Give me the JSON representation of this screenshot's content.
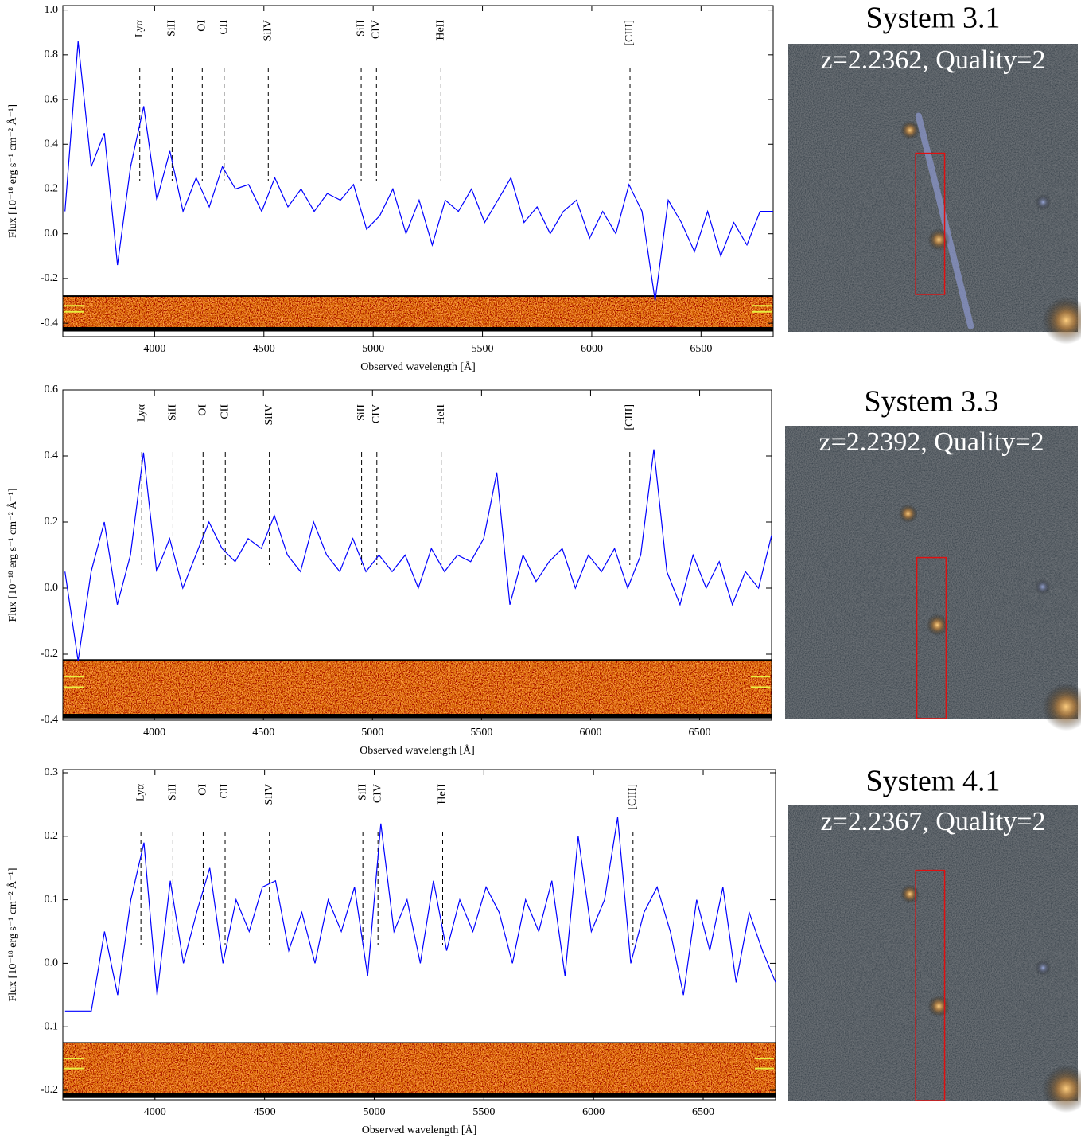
{
  "chart_data": [
    {
      "type": "line",
      "system": "System 3.1",
      "redshift_label": "z=2.2362, Quality=2",
      "x_label": "Observed wavelength [Å]",
      "y_label": "Flux [10⁻¹⁸ erg s⁻¹ cm⁻² Å⁻¹]",
      "xlim": [
        3580,
        6830
      ],
      "xticks": [
        4000,
        4500,
        5000,
        5500,
        6000,
        6500
      ],
      "ylim": [
        -0.46,
        1.02
      ],
      "yticks": [
        -0.4,
        -0.2,
        {
          "value": 0,
          "label": "0.0"
        },
        0.2,
        0.4,
        0.6,
        0.8,
        {
          "value": 1,
          "label": "1.0"
        }
      ],
      "series": [
        {
          "name": "spectrum",
          "color": "#0000ff",
          "x": [
            3590,
            3650,
            3710,
            3770,
            3830,
            3890,
            3950,
            4010,
            4070,
            4130,
            4190,
            4250,
            4310,
            4370,
            4430,
            4490,
            4550,
            4610,
            4670,
            4730,
            4790,
            4850,
            4910,
            4970,
            5030,
            5090,
            5150,
            5210,
            5270,
            5330,
            5390,
            5450,
            5510,
            5570,
            5630,
            5690,
            5750,
            5810,
            5870,
            5930,
            5990,
            6050,
            6110,
            6170,
            6230,
            6290,
            6350,
            6410,
            6470,
            6530,
            6590,
            6650,
            6710,
            6770,
            6830
          ],
          "values": [
            0.1,
            0.86,
            0.3,
            0.45,
            -0.14,
            0.3,
            0.57,
            0.15,
            0.37,
            0.1,
            0.25,
            0.12,
            0.3,
            0.2,
            0.22,
            0.1,
            0.25,
            0.12,
            0.2,
            0.1,
            0.18,
            0.15,
            0.22,
            0.02,
            0.08,
            0.2,
            0.0,
            0.15,
            -0.05,
            0.15,
            0.1,
            0.2,
            0.05,
            0.15,
            0.25,
            0.05,
            0.12,
            0.0,
            0.1,
            0.15,
            -0.02,
            0.1,
            0.0,
            0.22,
            0.1,
            -0.3,
            0.15,
            0.05,
            -0.08,
            0.1,
            -0.1,
            0.05,
            -0.05,
            0.1,
            0.1
          ]
        }
      ],
      "annotations": [
        {
          "label": "Lyα",
          "x": 3932
        },
        {
          "label": "SiII",
          "x": 4080
        },
        {
          "label": "OI",
          "x": 4218
        },
        {
          "label": "CII",
          "x": 4318
        },
        {
          "label": "SiIV",
          "x": 4520
        },
        {
          "label": "SiII",
          "x": 4945
        },
        {
          "label": "CIV",
          "x": 5015
        },
        {
          "label": "HeII",
          "x": 5310
        },
        {
          "label": "[CIII]",
          "x": 6175
        }
      ]
    },
    {
      "type": "line",
      "system": "System 3.3",
      "redshift_label": "z=2.2392, Quality=2",
      "x_label": "Observed wavelength [Å]",
      "y_label": "Flux [10⁻¹⁸ erg s⁻¹ cm⁻² Å⁻¹]",
      "xlim": [
        3580,
        6830
      ],
      "xticks": [
        4000,
        4500,
        5000,
        5500,
        6000,
        6500
      ],
      "ylim": [
        -0.4,
        0.6
      ],
      "yticks": [
        -0.4,
        -0.2,
        {
          "value": 0,
          "label": "0.0"
        },
        0.2,
        0.4,
        0.6
      ],
      "series": [
        {
          "name": "spectrum",
          "color": "#0000ff",
          "x": [
            3590,
            3650,
            3710,
            3770,
            3830,
            3890,
            3950,
            4010,
            4070,
            4130,
            4190,
            4250,
            4310,
            4370,
            4430,
            4490,
            4550,
            4610,
            4670,
            4730,
            4790,
            4850,
            4910,
            4970,
            5030,
            5090,
            5150,
            5210,
            5270,
            5330,
            5390,
            5450,
            5510,
            5570,
            5630,
            5690,
            5750,
            5810,
            5870,
            5930,
            5990,
            6050,
            6110,
            6170,
            6230,
            6290,
            6350,
            6410,
            6470,
            6530,
            6590,
            6650,
            6710,
            6770,
            6830
          ],
          "values": [
            0.05,
            -0.22,
            0.05,
            0.2,
            -0.05,
            0.1,
            0.41,
            0.05,
            0.15,
            0.0,
            0.1,
            0.2,
            0.12,
            0.08,
            0.15,
            0.12,
            0.22,
            0.1,
            0.05,
            0.2,
            0.1,
            0.05,
            0.15,
            0.05,
            0.1,
            0.05,
            0.1,
            0.0,
            0.12,
            0.05,
            0.1,
            0.08,
            0.15,
            0.35,
            -0.05,
            0.1,
            0.02,
            0.08,
            0.12,
            0.0,
            0.1,
            0.05,
            0.12,
            0.0,
            0.1,
            0.42,
            0.05,
            -0.05,
            0.1,
            0.0,
            0.08,
            -0.05,
            0.05,
            0.0,
            0.16
          ]
        }
      ],
      "annotations": [
        {
          "label": "Lyα",
          "x": 3942
        },
        {
          "label": "SiII",
          "x": 4085
        },
        {
          "label": "OI",
          "x": 4223
        },
        {
          "label": "CII",
          "x": 4325
        },
        {
          "label": "SiIV",
          "x": 4527
        },
        {
          "label": "SiII",
          "x": 4950
        },
        {
          "label": "CIV",
          "x": 5020
        },
        {
          "label": "HeII",
          "x": 5315
        },
        {
          "label": "[CIII]",
          "x": 6180
        }
      ]
    },
    {
      "type": "line",
      "system": "System 4.1",
      "redshift_label": "z=2.2367, Quality=2",
      "x_label": "Observed wavelength [Å]",
      "y_label": "Flux [10⁻¹⁸ erg s⁻¹ cm⁻² Å⁻¹]",
      "xlim": [
        3580,
        6830
      ],
      "xticks": [
        4000,
        4500,
        5000,
        5500,
        6000,
        6500
      ],
      "ylim": [
        -0.215,
        0.305
      ],
      "yticks": [
        -0.2,
        -0.1,
        {
          "value": 0,
          "label": "0.0"
        },
        0.1,
        0.2,
        0.3
      ],
      "series": [
        {
          "name": "spectrum",
          "color": "#0000ff",
          "x": [
            3590,
            3650,
            3710,
            3770,
            3830,
            3890,
            3950,
            4010,
            4070,
            4130,
            4190,
            4250,
            4310,
            4370,
            4430,
            4490,
            4550,
            4610,
            4670,
            4730,
            4790,
            4850,
            4910,
            4970,
            5030,
            5090,
            5150,
            5210,
            5270,
            5330,
            5390,
            5450,
            5510,
            5570,
            5630,
            5690,
            5750,
            5810,
            5870,
            5930,
            5990,
            6050,
            6110,
            6170,
            6230,
            6290,
            6350,
            6410,
            6470,
            6530,
            6590,
            6650,
            6710,
            6770,
            6830
          ],
          "values": [
            -0.075,
            -0.075,
            -0.075,
            0.05,
            -0.05,
            0.1,
            0.19,
            -0.05,
            0.13,
            0.0,
            0.08,
            0.15,
            0.0,
            0.1,
            0.05,
            0.12,
            0.13,
            0.02,
            0.08,
            0.0,
            0.1,
            0.05,
            0.12,
            -0.02,
            0.22,
            0.05,
            0.1,
            0.0,
            0.13,
            0.02,
            0.1,
            0.05,
            0.12,
            0.08,
            0.0,
            0.1,
            0.05,
            0.13,
            -0.02,
            0.2,
            0.05,
            0.1,
            0.23,
            0.0,
            0.08,
            0.12,
            0.05,
            -0.05,
            0.1,
            0.02,
            0.12,
            -0.03,
            0.08,
            0.02,
            -0.03
          ]
        }
      ],
      "annotations": [
        {
          "label": "Lyα",
          "x": 3936
        },
        {
          "label": "SiII",
          "x": 4082
        },
        {
          "label": "OI",
          "x": 4220
        },
        {
          "label": "CII",
          "x": 4320
        },
        {
          "label": "SiIV",
          "x": 4522
        },
        {
          "label": "SiII",
          "x": 4948
        },
        {
          "label": "CIV",
          "x": 5017
        },
        {
          "label": "HeII",
          "x": 5312
        },
        {
          "label": "[CIII]",
          "x": 6180
        }
      ]
    }
  ]
}
